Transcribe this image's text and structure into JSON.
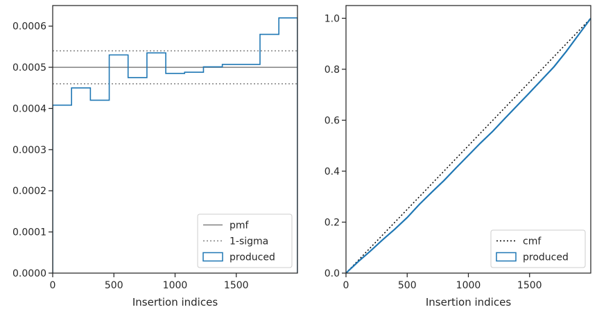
{
  "chart_data": [
    {
      "type": "histogram",
      "xlabel": "Insertion indices",
      "ylabel": "",
      "xlim": [
        0,
        2000
      ],
      "ylim": [
        0,
        0.00065
      ],
      "xticks": [
        0,
        500,
        1000,
        1500
      ],
      "xtick_labels": [
        "0",
        "500",
        "1000",
        "1500"
      ],
      "yticks": [
        0,
        0.0001,
        0.0002,
        0.0003,
        0.0004,
        0.0005,
        0.0006
      ],
      "ytick_labels": [
        "0.0000",
        "0.0001",
        "0.0002",
        "0.0003",
        "0.0004",
        "0.0005",
        "0.0006"
      ],
      "grid": false,
      "legend_position": "lower-right",
      "reference_lines": [
        {
          "name": "pmf",
          "y": 0.0005,
          "style": "solid",
          "color": "#808080"
        },
        {
          "name": "1-sigma",
          "y": [
            0.00046,
            0.00054
          ],
          "style": "dotted",
          "color": "#808080"
        }
      ],
      "series": [
        {
          "name": "produced",
          "style": "step",
          "color": "#1f77b4",
          "bin_edges": [
            0,
            154,
            308,
            462,
            616,
            770,
            924,
            1078,
            1232,
            1386,
            1540,
            1694,
            1848,
            2000
          ],
          "values": [
            0.000408,
            0.00045,
            0.00042,
            0.00053,
            0.000475,
            0.000535,
            0.000485,
            0.000488,
            0.000501,
            0.000507,
            0.000507,
            0.00058,
            0.00062
          ]
        }
      ],
      "legend": [
        "pmf",
        "1-sigma",
        "produced"
      ]
    },
    {
      "type": "line",
      "xlabel": "Insertion indices",
      "ylabel": "",
      "xlim": [
        0,
        2000
      ],
      "ylim": [
        0,
        1.05
      ],
      "xticks": [
        0,
        500,
        1000,
        1500
      ],
      "xtick_labels": [
        "0",
        "500",
        "1000",
        "1500"
      ],
      "yticks": [
        0,
        0.2,
        0.4,
        0.6,
        0.8,
        1.0
      ],
      "ytick_labels": [
        "0.0",
        "0.2",
        "0.4",
        "0.6",
        "0.8",
        "1.0"
      ],
      "grid": false,
      "legend_position": "lower-right",
      "series": [
        {
          "name": "cmf",
          "style": "dotted",
          "color": "#000000",
          "x": [
            0,
            2000
          ],
          "y": [
            0,
            1
          ]
        },
        {
          "name": "produced",
          "style": "step",
          "color": "#1f77b4",
          "x": [
            0,
            100,
            200,
            300,
            400,
            500,
            600,
            700,
            800,
            900,
            1000,
            1100,
            1200,
            1300,
            1400,
            1500,
            1600,
            1700,
            1800,
            1900,
            2000
          ],
          "y": [
            0,
            0.045,
            0.087,
            0.131,
            0.173,
            0.218,
            0.27,
            0.317,
            0.363,
            0.413,
            0.462,
            0.511,
            0.557,
            0.608,
            0.658,
            0.708,
            0.759,
            0.81,
            0.87,
            0.935,
            1.0
          ]
        }
      ],
      "legend": [
        "cmf",
        "produced"
      ]
    }
  ]
}
